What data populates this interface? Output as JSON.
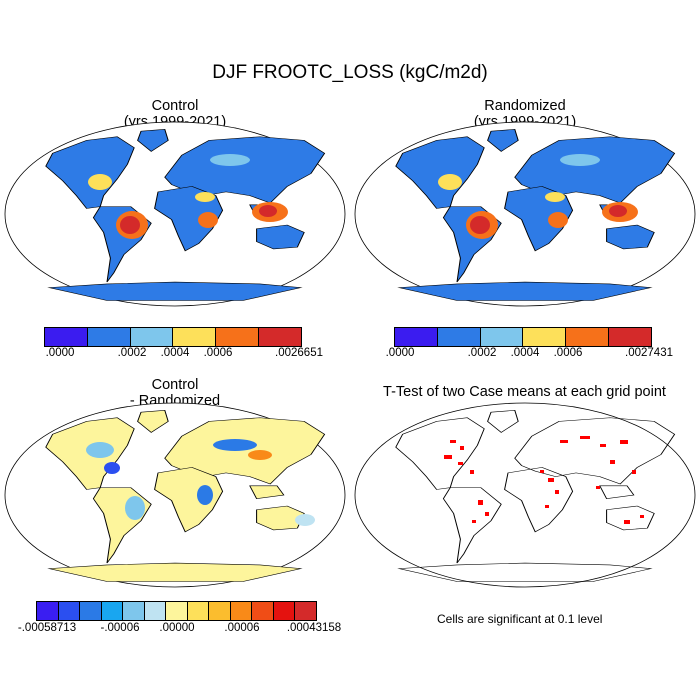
{
  "title": "DJF FROOTC_LOSS (kgC/m2d)",
  "panels": {
    "control": {
      "title1": "Control",
      "title2": "(yrs 1999-2021)"
    },
    "randomized": {
      "title1": "Randomized",
      "title2": "(yrs 1999-2021)"
    },
    "difference": {
      "title1": "Control",
      "title2": "- Randomized"
    },
    "ttest": {
      "title1": "T-Test of two Case means at each grid point",
      "note": "Cells are significant at 0.1 level"
    }
  },
  "colorbars": {
    "control": {
      "colors": [
        "#3b1cf0",
        "#2e7be6",
        "#7ec6ec",
        "#fde05a",
        "#f6711a",
        "#d42a2a"
      ],
      "labels": [
        ".0000",
        ".0002",
        ".0004",
        ".0006",
        ".0026651"
      ]
    },
    "randomized": {
      "colors": [
        "#3b1cf0",
        "#2e7be6",
        "#7ec6ec",
        "#fde05a",
        "#f6711a",
        "#d42a2a"
      ],
      "labels": [
        ".0000",
        ".0002",
        ".0004",
        ".0006",
        ".0027431"
      ]
    },
    "difference": {
      "colors": [
        "#3a1ef2",
        "#2b4ff0",
        "#2b7ae6",
        "#19a6f0",
        "#7ec6ec",
        "#bfe3f2",
        "#fdf59c",
        "#fde05a",
        "#fbbd2e",
        "#f98a18",
        "#f04d16",
        "#e4120f",
        "#d42a2a"
      ],
      "labels": [
        "-.00058713",
        "-.00006",
        ".00000",
        ".00006",
        ".00043158"
      ]
    }
  },
  "map_colors": {
    "land_mean_main": "#2e7be6",
    "land_mean_alt": "#7ec6ec",
    "land_mean_high": "#d42a2a",
    "land_diff_main": "#fdf59c",
    "ttest_sig": "#ff0000"
  }
}
